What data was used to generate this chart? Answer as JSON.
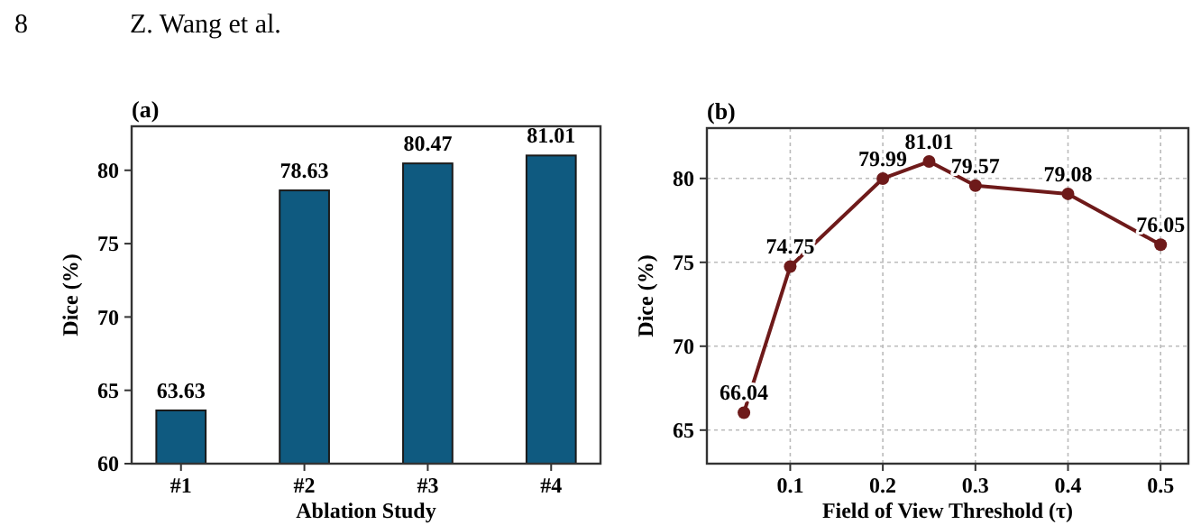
{
  "chart_data": [
    {
      "type": "bar",
      "title": "(a)",
      "xlabel": "Ablation Study",
      "ylabel": "Dice (%)",
      "annotations": [
        "8",
        "Z. Wang et al."
      ],
      "categories": [
        "#1",
        "#2",
        "#3",
        "#4"
      ],
      "values": [
        63.63,
        78.63,
        80.47,
        81.01
      ],
      "color": "#0f5a80",
      "ylim": [
        60,
        83
      ],
      "yticks": [
        60,
        65,
        70,
        75,
        80
      ],
      "data_labels": true
    },
    {
      "type": "line",
      "title": "(b)",
      "xlabel": "Field of View Threshold (τ)",
      "ylabel": "Dice (%)",
      "x": [
        0.05,
        0.1,
        0.2,
        0.25,
        0.3,
        0.4,
        0.5
      ],
      "values": [
        66.04,
        74.75,
        79.99,
        81.01,
        79.57,
        79.08,
        76.05
      ],
      "color": "#6e1a1a",
      "xlim": [
        0.01,
        0.53
      ],
      "xticks": [
        0.1,
        0.2,
        0.3,
        0.4,
        0.5
      ],
      "ylim": [
        63,
        83
      ],
      "yticks": [
        65,
        70,
        75,
        80
      ],
      "data_labels": true,
      "grid": true,
      "marker": "circle",
      "line_style": "solid"
    }
  ]
}
